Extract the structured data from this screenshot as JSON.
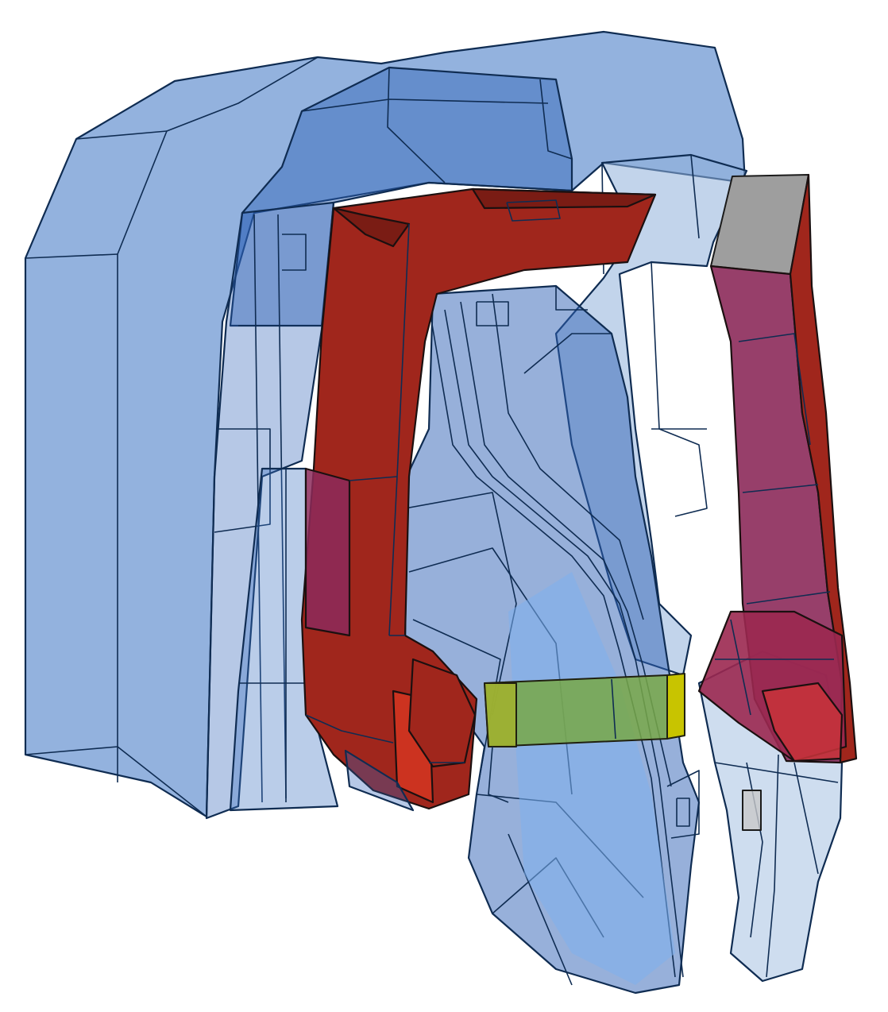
{
  "colors": {
    "background": "#ffffff",
    "transparent_blue": "#3b72c2",
    "deep_blue": "#2f62b6",
    "pale_blue": "#8fb1da",
    "red_frame": "#a0261c",
    "red_bright": "#cc3320",
    "red_shadow": "#7a1c14",
    "magenta_inner": "#8c2a5a",
    "grey_block": "#9e9e9e",
    "yellow_block": "#c8c400",
    "edge": "#0f2c52"
  },
  "parts": [
    {
      "id": "outer-shell",
      "material": "transparent_blue"
    },
    {
      "id": "mid-shell",
      "material": "transparent_blue"
    },
    {
      "id": "right-shell",
      "material": "pale_blue"
    },
    {
      "id": "left-red-frame",
      "material": "red_frame"
    },
    {
      "id": "right-red-frame",
      "material": "red_frame"
    },
    {
      "id": "grey-block",
      "material": "grey_block"
    },
    {
      "id": "yellow-block",
      "material": "yellow_block"
    },
    {
      "id": "center-jaw",
      "material": "deep_blue"
    },
    {
      "id": "right-jaw",
      "material": "pale_blue"
    }
  ]
}
